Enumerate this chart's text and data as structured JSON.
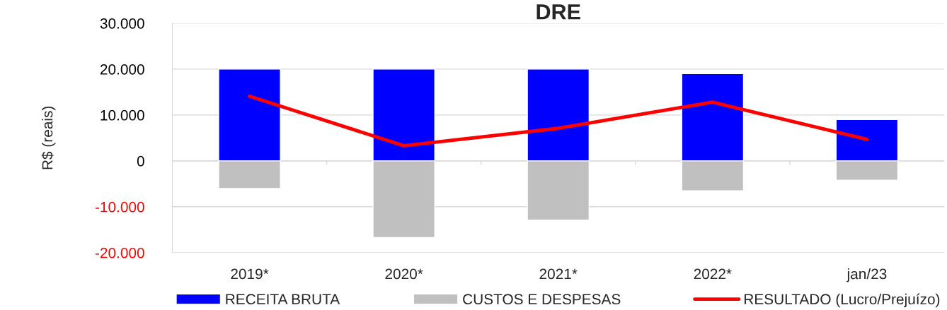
{
  "chart_data": {
    "type": "bar",
    "title": "DRE",
    "ylabel": "R$ (reais)",
    "categories": [
      "2019*",
      "2020*",
      "2021*",
      "2022*",
      "jan/23"
    ],
    "series": [
      {
        "name": "RECEITA BRUTA",
        "color": "#0000ff",
        "values": [
          20000,
          20000,
          20000,
          19000,
          9000
        ]
      },
      {
        "name": "CUSTOS E DESPESAS",
        "color": "#c0c0c0",
        "values": [
          -6000,
          -16700,
          -12900,
          -6500,
          -4200
        ]
      },
      {
        "name": "RESULTADO (Lucro/Prejuízo)",
        "type": "line",
        "color": "#ff0000",
        "values": [
          14100,
          3300,
          7100,
          12800,
          4700
        ]
      }
    ],
    "stacked": true,
    "ylim": [
      -20000,
      30000
    ],
    "yticks": [
      {
        "value": -20000,
        "label": "-20.000"
      },
      {
        "value": -10000,
        "label": "-10.000"
      },
      0,
      {
        "value": 10000,
        "label": "10.000"
      },
      {
        "value": 20000,
        "label": "20.000"
      },
      {
        "value": 30000,
        "label": "30.000"
      }
    ],
    "grid": "y",
    "legend": "bottom",
    "marker": "none",
    "line_style": "solid"
  }
}
